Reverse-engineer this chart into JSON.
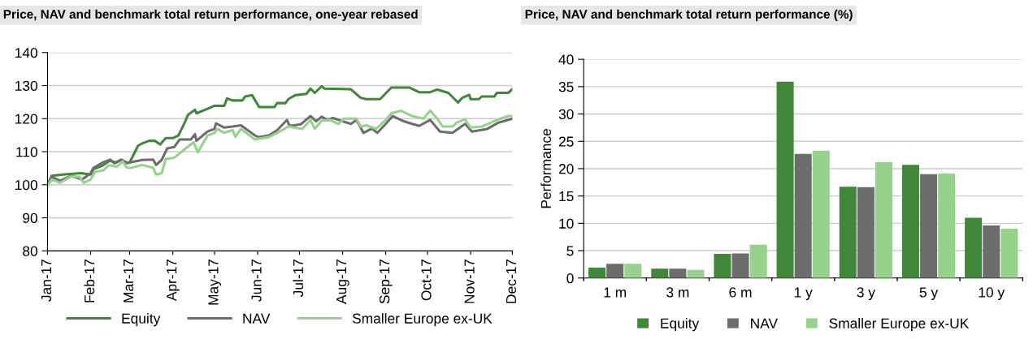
{
  "chart_data": [
    {
      "type": "line",
      "title": "Price, NAV and benchmark total return performance, one-year rebased",
      "xlim": [
        "2017-01-01",
        "2017-12-01"
      ],
      "xticks": [
        {
          "value": "2017-01-01",
          "label": "Jan-17"
        },
        {
          "value": "2017-02-01",
          "label": "Feb-17"
        },
        {
          "value": "2017-03-01",
          "label": "Mar-17"
        },
        {
          "value": "2017-04-01",
          "label": "Apr-17"
        },
        {
          "value": "2017-05-01",
          "label": "May-17"
        },
        {
          "value": "2017-06-01",
          "label": "Jun-17"
        },
        {
          "value": "2017-07-01",
          "label": "Jul-17"
        },
        {
          "value": "2017-08-01",
          "label": "Aug-17"
        },
        {
          "value": "2017-09-01",
          "label": "Sep-17"
        },
        {
          "value": "2017-10-01",
          "label": "Oct-17"
        },
        {
          "value": "2017-11-01",
          "label": "Nov-17"
        },
        {
          "value": "2017-12-01",
          "label": "Dec-17"
        }
      ],
      "ylim": [
        80,
        140
      ],
      "yticks": [
        80,
        90,
        100,
        110,
        120,
        130,
        140
      ],
      "grid": "y",
      "legend": "bottom",
      "marker": "none",
      "line_style": "solid",
      "series": [
        {
          "name": "Equity",
          "color": "#41873a",
          "x": [
            "2017-01-01",
            "2017-01-04",
            "2017-01-12",
            "2017-01-25",
            "2017-02-01",
            "2017-02-03",
            "2017-02-10",
            "2017-02-15",
            "2017-02-19",
            "2017-02-23",
            "2017-02-27",
            "2017-03-01",
            "2017-03-07",
            "2017-03-10",
            "2017-03-15",
            "2017-03-19",
            "2017-03-23",
            "2017-03-27",
            "2017-04-01",
            "2017-04-05",
            "2017-04-10",
            "2017-04-12",
            "2017-04-17",
            "2017-04-18",
            "2017-04-26",
            "2017-05-01",
            "2017-05-08",
            "2017-05-10",
            "2017-05-14",
            "2017-05-21",
            "2017-05-23",
            "2017-05-28",
            "2017-06-02",
            "2017-06-13",
            "2017-06-15",
            "2017-06-21",
            "2017-06-23",
            "2017-06-28",
            "2017-07-06",
            "2017-07-09",
            "2017-07-12",
            "2017-07-17",
            "2017-07-19",
            "2017-08-07",
            "2017-08-14",
            "2017-08-18",
            "2017-08-28",
            "2017-09-05",
            "2017-09-18",
            "2017-09-25",
            "2017-10-03",
            "2017-10-08",
            "2017-10-16",
            "2017-10-23",
            "2017-10-26",
            "2017-10-31",
            "2017-11-01",
            "2017-11-07",
            "2017-11-09",
            "2017-11-18",
            "2017-11-20",
            "2017-11-28",
            "2017-12-01"
          ],
          "values": [
            100,
            102.7,
            103.1,
            103.5,
            103.1,
            104.7,
            105.9,
            107.3,
            106.7,
            107.5,
            106.7,
            106.7,
            111.8,
            112.5,
            113.3,
            113.3,
            112.2,
            114.1,
            114.1,
            114.9,
            119.2,
            121.2,
            122.7,
            121.6,
            123.0,
            123.9,
            123.9,
            126.1,
            125.5,
            125.5,
            126.7,
            127.1,
            123.5,
            123.5,
            124.7,
            124.7,
            125.9,
            127.1,
            127.5,
            129.1,
            127.8,
            129.8,
            129.1,
            128.9,
            126.3,
            125.9,
            125.9,
            129.4,
            129.4,
            128.0,
            128.0,
            128.8,
            127.8,
            124.9,
            126.3,
            127.2,
            125.9,
            125.9,
            126.7,
            126.7,
            127.8,
            127.8,
            128.9
          ]
        },
        {
          "name": "NAV",
          "color": "#6d6d6d",
          "x": [
            "2017-01-01",
            "2017-01-04",
            "2017-01-10",
            "2017-01-18",
            "2017-01-26",
            "2017-02-01",
            "2017-02-03",
            "2017-02-10",
            "2017-02-15",
            "2017-02-18",
            "2017-02-23",
            "2017-02-27",
            "2017-03-02",
            "2017-03-10",
            "2017-03-18",
            "2017-03-20",
            "2017-03-24",
            "2017-03-28",
            "2017-04-02",
            "2017-04-06",
            "2017-04-14",
            "2017-04-17",
            "2017-04-18",
            "2017-04-26",
            "2017-05-01",
            "2017-05-02",
            "2017-05-08",
            "2017-05-14",
            "2017-05-20",
            "2017-05-30",
            "2017-06-02",
            "2017-06-09",
            "2017-06-15",
            "2017-06-22",
            "2017-06-24",
            "2017-07-02",
            "2017-07-09",
            "2017-07-13",
            "2017-07-17",
            "2017-07-21",
            "2017-07-25",
            "2017-08-01",
            "2017-08-07",
            "2017-08-11",
            "2017-08-16",
            "2017-08-22",
            "2017-08-26",
            "2017-09-01",
            "2017-09-06",
            "2017-09-14",
            "2017-09-25",
            "2017-10-03",
            "2017-10-10",
            "2017-10-19",
            "2017-10-28",
            "2017-11-02",
            "2017-11-13",
            "2017-11-21",
            "2017-12-01"
          ],
          "values": [
            100,
            102.4,
            101.2,
            102.7,
            101.6,
            103.5,
            105.1,
            106.8,
            107.6,
            106.5,
            107.6,
            106.5,
            106.8,
            107.5,
            107.6,
            106.0,
            107.5,
            111.0,
            111.4,
            113.7,
            113.7,
            115.3,
            113.3,
            116.1,
            116.9,
            118.6,
            117.3,
            117.6,
            118.0,
            114.9,
            114.4,
            114.9,
            116.5,
            119.6,
            117.8,
            118.3,
            120.8,
            119.2,
            120.6,
            119.6,
            120.2,
            119.2,
            118.4,
            119.6,
            115.7,
            117.0,
            115.7,
            118.4,
            120.8,
            119.2,
            117.8,
            119.6,
            116.1,
            115.7,
            118.4,
            116.1,
            116.9,
            118.8,
            120.0
          ]
        },
        {
          "name": "Smaller Europe ex-UK",
          "color": "#96d28c",
          "x": [
            "2017-01-01",
            "2017-01-04",
            "2017-01-10",
            "2017-01-18",
            "2017-01-24",
            "2017-01-27",
            "2017-02-01",
            "2017-02-04",
            "2017-02-10",
            "2017-02-14",
            "2017-02-20",
            "2017-02-24",
            "2017-02-27",
            "2017-03-02",
            "2017-03-10",
            "2017-03-18",
            "2017-03-20",
            "2017-03-24",
            "2017-03-27",
            "2017-04-02",
            "2017-04-08",
            "2017-04-16",
            "2017-04-19",
            "2017-04-26",
            "2017-05-01",
            "2017-05-03",
            "2017-05-08",
            "2017-05-14",
            "2017-05-16",
            "2017-05-20",
            "2017-05-30",
            "2017-06-01",
            "2017-06-09",
            "2017-06-15",
            "2017-06-23",
            "2017-07-03",
            "2017-07-09",
            "2017-07-12",
            "2017-07-17",
            "2017-07-23",
            "2017-07-29",
            "2017-08-02",
            "2017-08-11",
            "2017-08-14",
            "2017-08-18",
            "2017-08-25",
            "2017-09-01",
            "2017-09-05",
            "2017-09-12",
            "2017-09-20",
            "2017-09-28",
            "2017-10-03",
            "2017-10-08",
            "2017-10-12",
            "2017-10-19",
            "2017-10-22",
            "2017-10-28",
            "2017-11-01",
            "2017-11-09",
            "2017-11-20",
            "2017-11-28",
            "2017-12-01"
          ],
          "values": [
            99.7,
            101.6,
            100.6,
            102.5,
            102.4,
            100.6,
            101.6,
            103.9,
            104.3,
            105.9,
            105.5,
            107.1,
            105.1,
            105.1,
            106.0,
            105.1,
            103.1,
            103.5,
            107.8,
            108.2,
            110.2,
            112.9,
            109.8,
            114.9,
            115.7,
            116.9,
            115.7,
            116.5,
            114.5,
            116.9,
            113.7,
            113.9,
            114.4,
            115.7,
            117.6,
            116.9,
            119.6,
            116.9,
            119.4,
            119.6,
            118.4,
            120.0,
            120.0,
            117.6,
            118.0,
            116.9,
            119.6,
            121.6,
            122.4,
            120.8,
            120.0,
            122.4,
            120.0,
            117.6,
            117.6,
            118.8,
            119.8,
            117.3,
            117.6,
            119.6,
            120.8,
            120.8
          ]
        }
      ]
    },
    {
      "type": "bar",
      "title": "Price, NAV and benchmark total return performance (%)",
      "ylabel": "Performance",
      "categories": [
        "1 m",
        "3 m",
        "6 m",
        "1 y",
        "3 y",
        "5 y",
        "10 y"
      ],
      "ylim": [
        0,
        40
      ],
      "yticks": [
        0,
        5,
        10,
        15,
        20,
        25,
        30,
        35,
        40
      ],
      "grid": "y",
      "legend": "bottom",
      "series": [
        {
          "name": "Equity",
          "color": "#41873a",
          "values": [
            1.9,
            1.7,
            4.4,
            35.9,
            16.7,
            20.7,
            11.0
          ]
        },
        {
          "name": "NAV",
          "color": "#6d6d6d",
          "values": [
            2.6,
            1.7,
            4.5,
            22.7,
            16.6,
            19.0,
            9.6
          ]
        },
        {
          "name": "Smaller Europe ex-UK",
          "color": "#96d28c",
          "values": [
            2.6,
            1.5,
            6.1,
            23.3,
            21.2,
            19.1,
            9.0
          ]
        }
      ]
    }
  ]
}
